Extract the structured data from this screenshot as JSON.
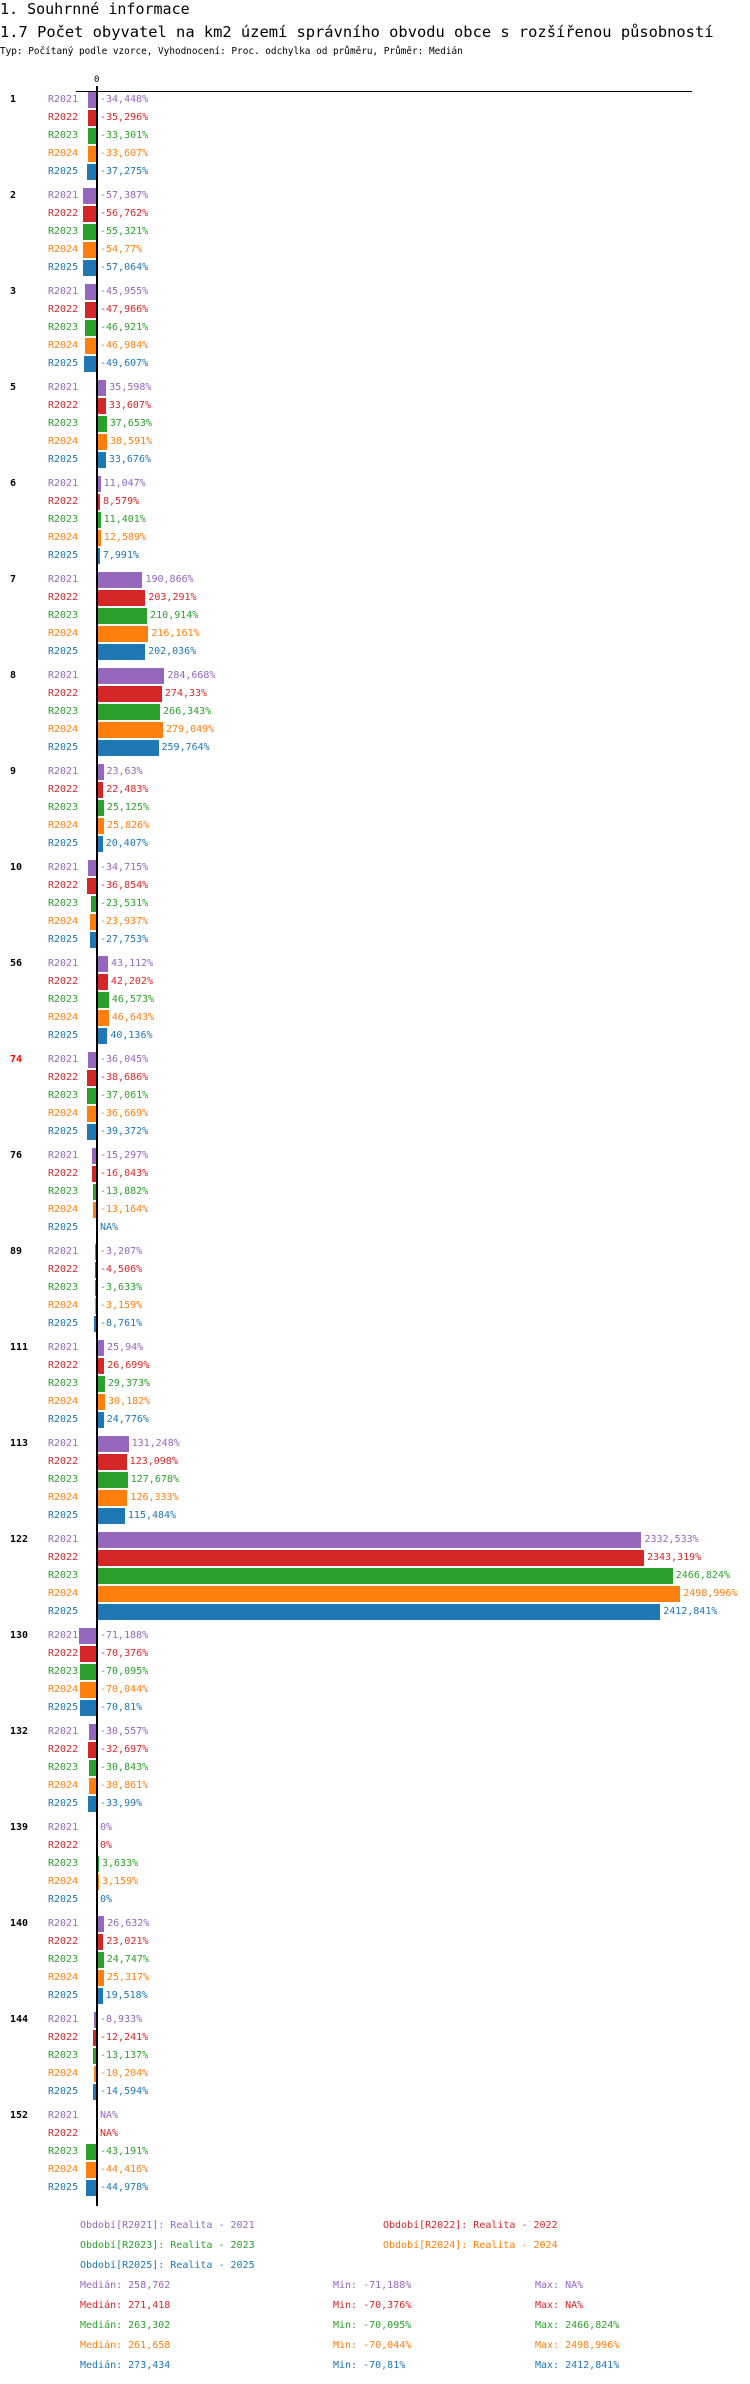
{
  "header": {
    "section": "1. Souhrnné informace",
    "title": "1.7 Počet obyvatel na km2 území správního obvodu obce s rozšířenou působností",
    "subtitle": "Typ: Počítaný podle vzorce, Vyhodnocení: Proc. odchylka od průměru, Průměr: Medián"
  },
  "chart_data": {
    "type": "bar",
    "orientation": "horizontal",
    "zero_label": "0",
    "series_names": [
      "R2021",
      "R2022",
      "R2023",
      "R2024",
      "R2025"
    ],
    "colors": [
      "#9467bd",
      "#d62728",
      "#2ca02c",
      "#ff7f0e",
      "#1f77b4"
    ],
    "groups": [
      {
        "label": "1",
        "highlight": false,
        "values": [
          "-34,448%",
          "-35,296%",
          "-33,301%",
          "-33,607%",
          "-37,275%"
        ]
      },
      {
        "label": "2",
        "highlight": false,
        "values": [
          "-57,387%",
          "-56,762%",
          "-55,321%",
          "-54,77%",
          "-57,064%"
        ]
      },
      {
        "label": "3",
        "highlight": false,
        "values": [
          "-45,955%",
          "-47,966%",
          "-46,921%",
          "-46,984%",
          "-49,607%"
        ]
      },
      {
        "label": "5",
        "highlight": false,
        "values": [
          "35,598%",
          "33,607%",
          "37,653%",
          "38,591%",
          "33,676%"
        ]
      },
      {
        "label": "6",
        "highlight": false,
        "values": [
          "11,047%",
          "8,579%",
          "11,401%",
          "12,589%",
          "7,991%"
        ]
      },
      {
        "label": "7",
        "highlight": false,
        "values": [
          "190,866%",
          "203,291%",
          "210,914%",
          "216,161%",
          "202,036%"
        ]
      },
      {
        "label": "8",
        "highlight": false,
        "values": [
          "284,668%",
          "274,33%",
          "266,343%",
          "279,049%",
          "259,764%"
        ]
      },
      {
        "label": "9",
        "highlight": false,
        "values": [
          "23,63%",
          "22,483%",
          "25,125%",
          "25,826%",
          "20,407%"
        ]
      },
      {
        "label": "10",
        "highlight": false,
        "values": [
          "-34,715%",
          "-36,854%",
          "-23,531%",
          "-23,937%",
          "-27,753%"
        ]
      },
      {
        "label": "56",
        "highlight": false,
        "values": [
          "43,112%",
          "42,202%",
          "46,573%",
          "46,643%",
          "40,136%"
        ]
      },
      {
        "label": "74",
        "highlight": true,
        "values": [
          "-36,045%",
          "-38,686%",
          "-37,061%",
          "-36,669%",
          "-39,372%"
        ]
      },
      {
        "label": "76",
        "highlight": false,
        "values": [
          "-15,297%",
          "-16,043%",
          "-13,882%",
          "-13,164%",
          "NA%"
        ]
      },
      {
        "label": "89",
        "highlight": false,
        "values": [
          "-3,207%",
          "-4,506%",
          "-3,633%",
          "-3,159%",
          "-8,761%"
        ]
      },
      {
        "label": "111",
        "highlight": false,
        "values": [
          "25,94%",
          "26,699%",
          "29,373%",
          "30,182%",
          "24,776%"
        ]
      },
      {
        "label": "113",
        "highlight": false,
        "values": [
          "131,248%",
          "123,098%",
          "127,678%",
          "126,333%",
          "115,484%"
        ]
      },
      {
        "label": "122",
        "highlight": false,
        "values": [
          "2332,533%",
          "2343,319%",
          "2466,824%",
          "2498,996%",
          "2412,841%"
        ]
      },
      {
        "label": "130",
        "highlight": false,
        "values": [
          "-71,188%",
          "-70,376%",
          "-70,095%",
          "-70,044%",
          "-70,81%"
        ]
      },
      {
        "label": "132",
        "highlight": false,
        "values": [
          "-30,557%",
          "-32,697%",
          "-30,843%",
          "-30,861%",
          "-33,99%"
        ]
      },
      {
        "label": "139",
        "highlight": false,
        "values": [
          "0%",
          "0%",
          "3,633%",
          "3,159%",
          "0%"
        ]
      },
      {
        "label": "140",
        "highlight": false,
        "values": [
          "26,632%",
          "23,021%",
          "24,747%",
          "25,317%",
          "19,518%"
        ]
      },
      {
        "label": "144",
        "highlight": false,
        "values": [
          "-8,933%",
          "-12,241%",
          "-13,137%",
          "-10,204%",
          "-14,594%"
        ]
      },
      {
        "label": "152",
        "highlight": false,
        "values": [
          "NA%",
          "NA%",
          "-43,191%",
          "-44,416%",
          "-44,978%"
        ]
      }
    ],
    "legend": [
      "Období[R2021]: Realita - 2021",
      "Období[R2022]: Realita - 2022",
      "Období[R2023]: Realita - 2023",
      "Období[R2024]: Realita - 2024",
      "Období[R2025]: Realita - 2025"
    ],
    "stats": [
      {
        "median": "Medián: 258,762",
        "min": "Min: -71,188%",
        "max": "Max: NA%"
      },
      {
        "median": "Medián: 271,418",
        "min": "Min: -70,376%",
        "max": "Max: NA%"
      },
      {
        "median": "Medián: 263,302",
        "min": "Min: -70,095%",
        "max": "Max: 2466,824%"
      },
      {
        "median": "Medián: 261,658",
        "min": "Min: -70,044%",
        "max": "Max: 2498,996%"
      },
      {
        "median": "Medián: 273,434",
        "min": "Min: -70,81%",
        "max": "Max: 2412,841%"
      }
    ]
  }
}
